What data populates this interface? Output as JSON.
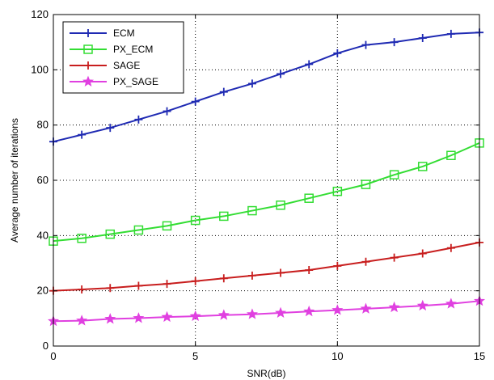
{
  "chart_data": {
    "type": "line",
    "xlabel": "SNR(dB)",
    "ylabel": "Average number of iterations",
    "xlim": [
      0,
      15
    ],
    "ylim": [
      0,
      120
    ],
    "xticks": [
      0,
      5,
      10,
      15
    ],
    "yticks": [
      0,
      20,
      40,
      60,
      80,
      100,
      120
    ],
    "grid": true,
    "legend_position": "top-left",
    "x": [
      0,
      1,
      2,
      3,
      4,
      5,
      6,
      7,
      8,
      9,
      10,
      11,
      12,
      13,
      14,
      15
    ],
    "series": [
      {
        "name": "ECM",
        "color": "#1f2ab3",
        "marker": "plus",
        "values": [
          74,
          76.5,
          79,
          82,
          85,
          88.5,
          92,
          95,
          98.5,
          102,
          106,
          109,
          110,
          111.5,
          113,
          113.5
        ]
      },
      {
        "name": "PX_ECM",
        "color": "#33dd33",
        "marker": "square",
        "values": [
          38,
          39,
          40.5,
          42,
          43.5,
          45.5,
          47,
          49,
          51,
          53.5,
          56,
          58.5,
          62,
          65,
          69,
          73.5
        ]
      },
      {
        "name": "SAGE",
        "color": "#c81e1e",
        "marker": "plus",
        "values": [
          20,
          20.5,
          21,
          21.8,
          22.5,
          23.5,
          24.5,
          25.5,
          26.5,
          27.5,
          29,
          30.5,
          32,
          33.5,
          35.5,
          37.5
        ]
      },
      {
        "name": "PX_SAGE",
        "color": "#e040e0",
        "marker": "star",
        "values": [
          9,
          9.2,
          9.8,
          10.1,
          10.5,
          10.8,
          11.2,
          11.5,
          12,
          12.5,
          13,
          13.5,
          14,
          14.6,
          15.3,
          16.3
        ]
      }
    ]
  }
}
